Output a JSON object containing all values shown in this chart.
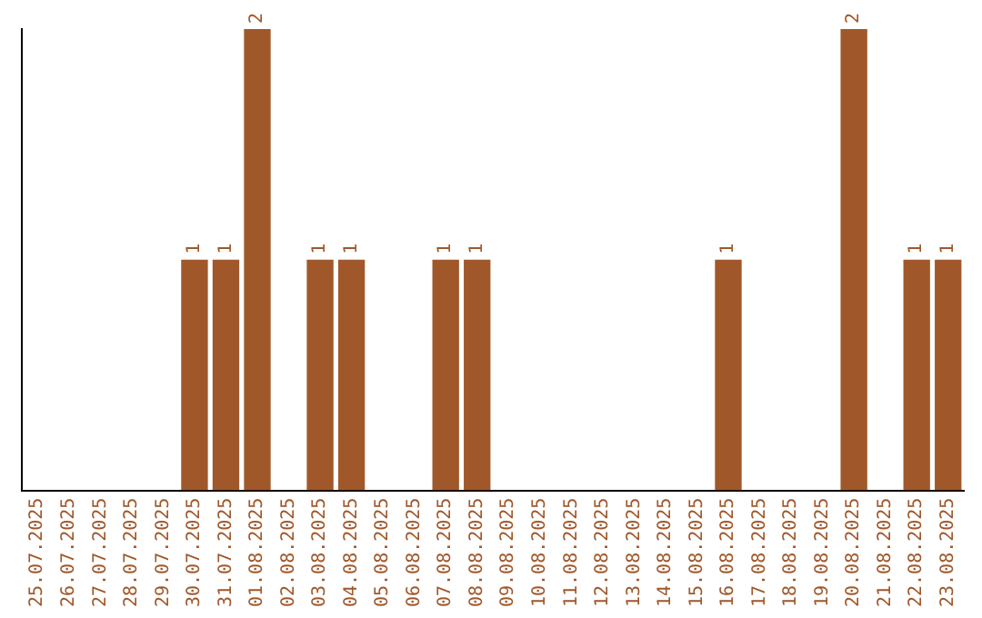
{
  "chart_data": {
    "type": "bar",
    "categories": [
      "25.07.2025",
      "26.07.2025",
      "27.07.2025",
      "28.07.2025",
      "29.07.2025",
      "30.07.2025",
      "31.07.2025",
      "01.08.2025",
      "02.08.2025",
      "03.08.2025",
      "04.08.2025",
      "05.08.2025",
      "06.08.2025",
      "07.08.2025",
      "08.08.2025",
      "09.08.2025",
      "10.08.2025",
      "11.08.2025",
      "12.08.2025",
      "13.08.2025",
      "14.08.2025",
      "15.08.2025",
      "16.08.2025",
      "17.08.2025",
      "18.08.2025",
      "19.08.2025",
      "20.08.2025",
      "21.08.2025",
      "22.08.2025",
      "23.08.2025"
    ],
    "values": [
      0,
      0,
      0,
      0,
      0,
      1,
      1,
      2,
      0,
      1,
      1,
      0,
      0,
      1,
      1,
      0,
      0,
      0,
      0,
      0,
      0,
      0,
      1,
      0,
      0,
      0,
      2,
      0,
      1,
      1
    ],
    "value_labels": [
      null,
      null,
      null,
      null,
      null,
      "1",
      "1",
      "2",
      null,
      "1",
      "1",
      null,
      null,
      "1",
      "1",
      null,
      null,
      null,
      null,
      null,
      null,
      null,
      "1",
      null,
      null,
      null,
      "2",
      null,
      "1",
      "1"
    ],
    "color": "#a0582a",
    "grid": false,
    "legend": false,
    "tick_labels": "x"
  }
}
